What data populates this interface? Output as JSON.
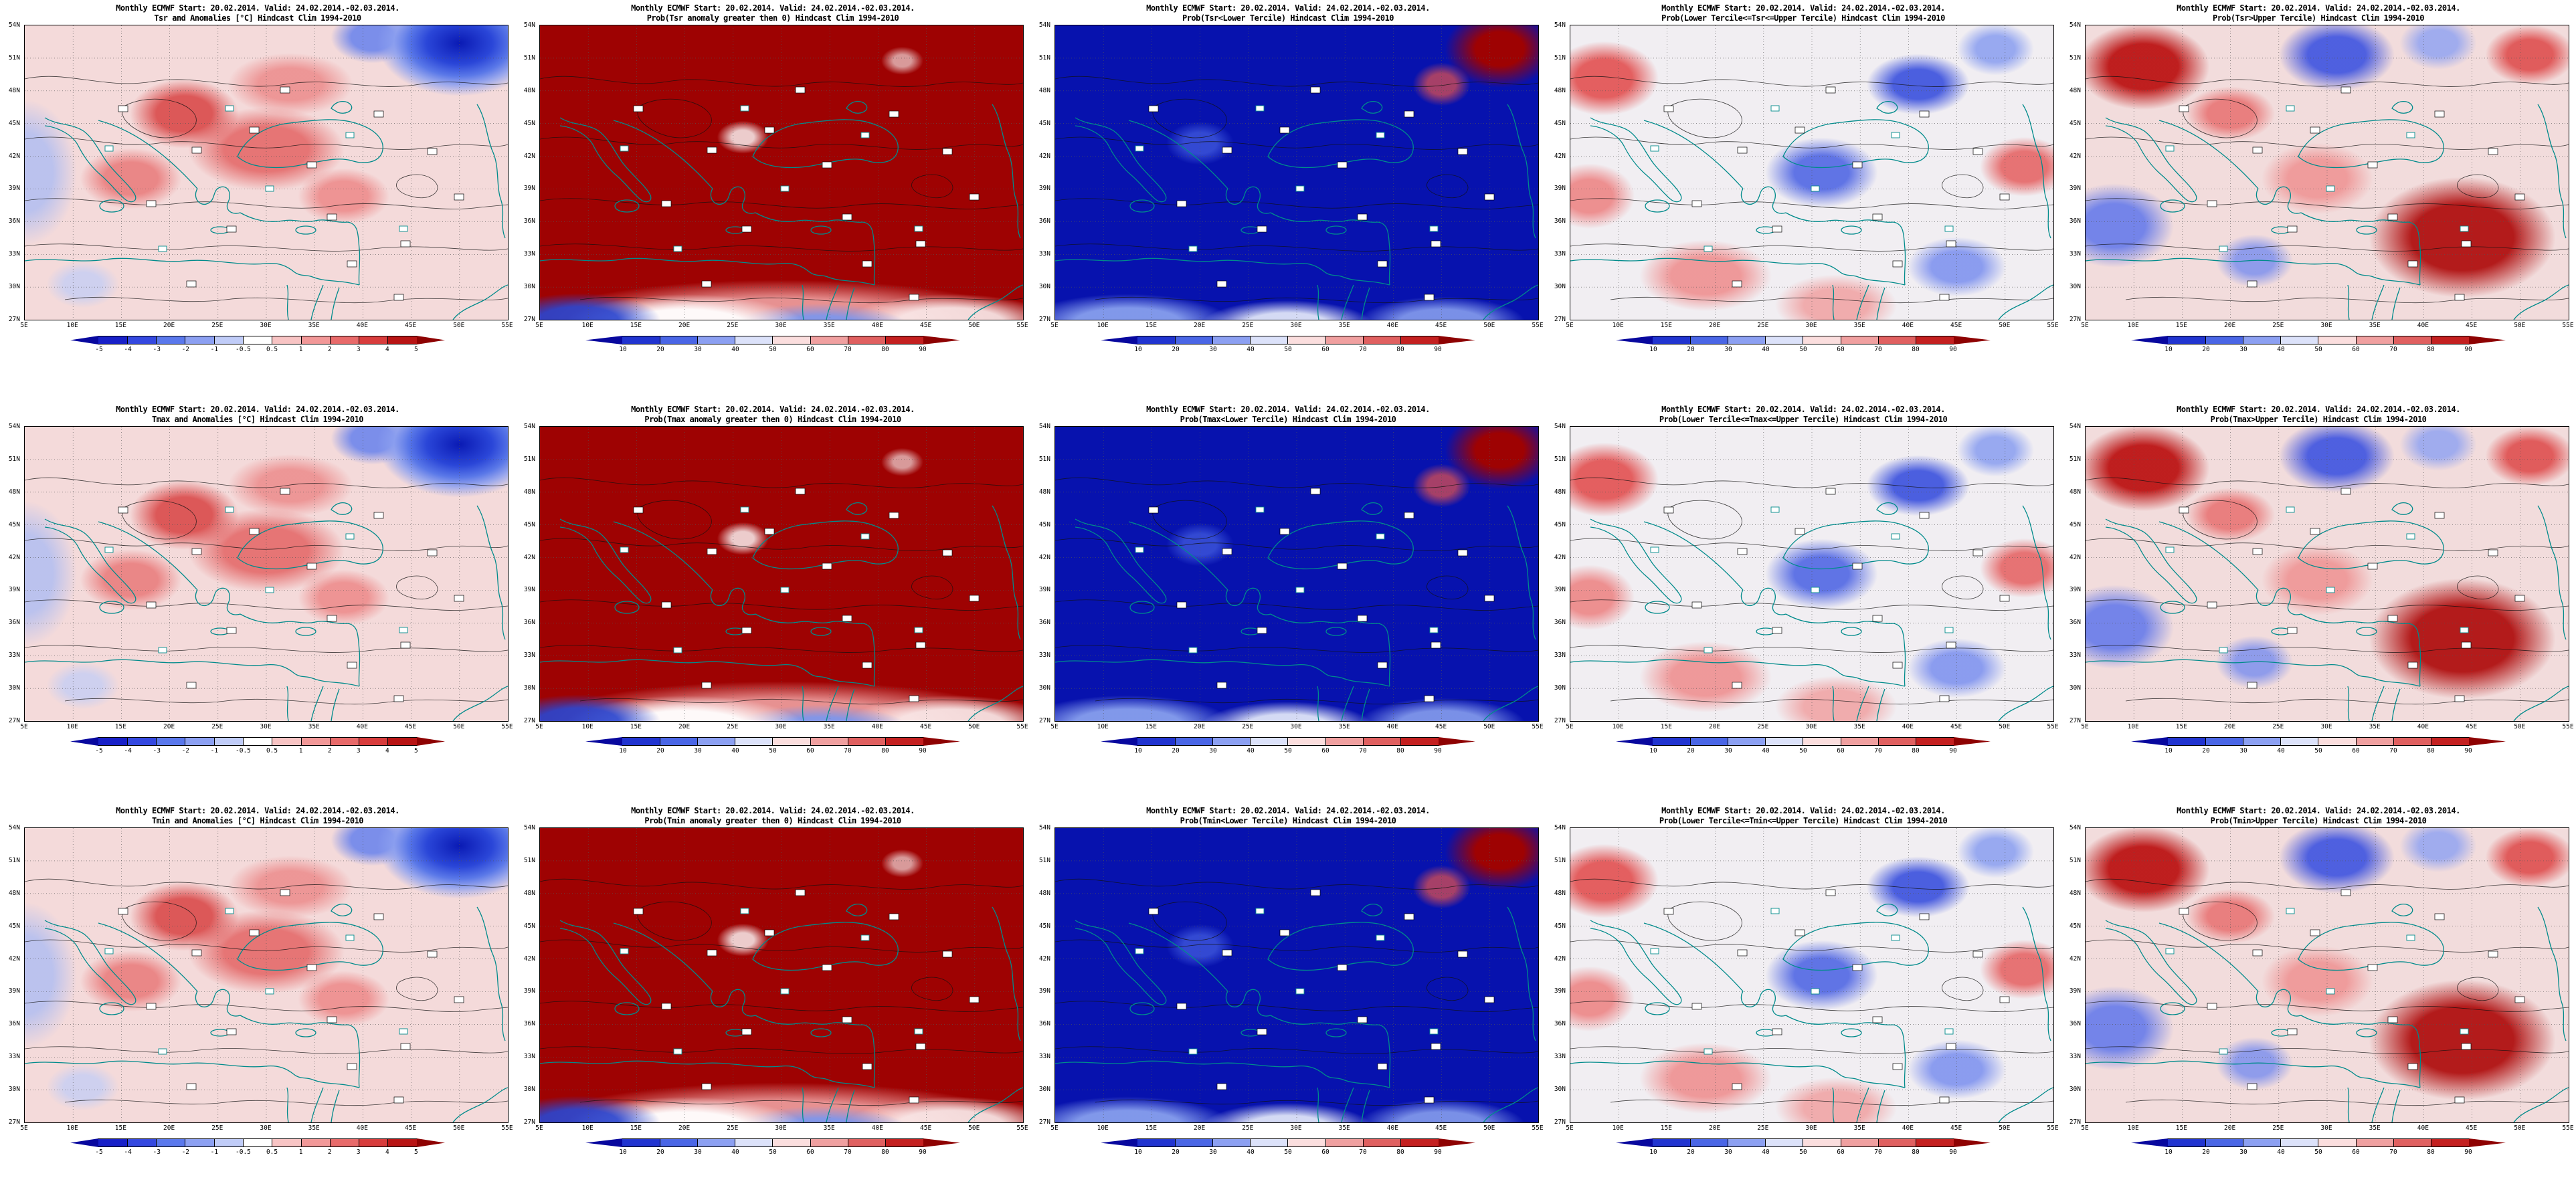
{
  "common": {
    "title1": "Monthly ECMWF Start: 20.02.2014. Valid: 24.02.2014.-02.03.2014."
  },
  "axes": {
    "lat": [
      "54N",
      "51N",
      "48N",
      "45N",
      "42N",
      "39N",
      "36N",
      "33N",
      "30N",
      "27N"
    ],
    "lon": [
      "5E",
      "10E",
      "15E",
      "20E",
      "25E",
      "30E",
      "35E",
      "40E",
      "45E",
      "50E",
      "55E"
    ]
  },
  "colorbars": {
    "anomaly": {
      "labels": [
        "-5",
        "-4",
        "-3",
        "-2",
        "-1",
        "-0.5",
        "0.5",
        "1",
        "2",
        "3",
        "4",
        "5"
      ],
      "colors": [
        "#08089e",
        "#1820c8",
        "#3448e0",
        "#5a78ec",
        "#8ca0f2",
        "#c0ccf8",
        "#ffffff",
        "#f8c4c4",
        "#f29898",
        "#e86a6a",
        "#d83c3c",
        "#b81414",
        "#8e0202"
      ]
    },
    "probability": {
      "labels": [
        "10",
        "20",
        "30",
        "40",
        "50",
        "60",
        "70",
        "80",
        "90"
      ],
      "colors": [
        "#08089e",
        "#2134d0",
        "#4a66e6",
        "#8ca0f2",
        "#dce2fa",
        "#fbdede",
        "#f0a0a0",
        "#e06060",
        "#c42020",
        "#8e0202"
      ]
    }
  },
  "panels": [
    {
      "id": "tsr-anomaly",
      "title2": "Tsr and Anomalies [°C] Hindcast Clim 1994-2010",
      "style": "anom",
      "colorbar": "anomaly"
    },
    {
      "id": "tsr-prob-positive",
      "title2": "Prob(Tsr anomaly greater then 0) Hindcast Clim 1994-2010",
      "style": "prob-pos",
      "colorbar": "probability"
    },
    {
      "id": "tsr-prob-lower",
      "title2": "Prob(Tsr<Lower Tercile) Hindcast Clim 1994-2010",
      "style": "prob-low",
      "colorbar": "probability"
    },
    {
      "id": "tsr-prob-middle",
      "title2": "Prob(Lower Tercile<=Tsr<=Upper Tercile) Hindcast Clim 1994-2010",
      "style": "prob-mid",
      "colorbar": "probability"
    },
    {
      "id": "tsr-prob-upper",
      "title2": "Prob(Tsr>Upper Tercile) Hindcast Clim 1994-2010",
      "style": "prob-high",
      "colorbar": "probability"
    },
    {
      "id": "tmax-anomaly",
      "title2": "Tmax and Anomalies [°C] Hindcast Clim 1994-2010",
      "style": "anom",
      "colorbar": "anomaly"
    },
    {
      "id": "tmax-prob-positive",
      "title2": "Prob(Tmax anomaly greater then 0) Hindcast Clim 1994-2010",
      "style": "prob-pos",
      "colorbar": "probability"
    },
    {
      "id": "tmax-prob-lower",
      "title2": "Prob(Tmax<Lower Tercile) Hindcast Clim 1994-2010",
      "style": "prob-low",
      "colorbar": "probability"
    },
    {
      "id": "tmax-prob-middle",
      "title2": "Prob(Lower Tercile<=Tmax<=Upper Tercile) Hindcast Clim 1994-2010",
      "style": "prob-mid",
      "colorbar": "probability"
    },
    {
      "id": "tmax-prob-upper",
      "title2": "Prob(Tmax>Upper Tercile) Hindcast Clim 1994-2010",
      "style": "prob-high",
      "colorbar": "probability"
    },
    {
      "id": "tmin-anomaly",
      "title2": "Tmin and Anomalies [°C] Hindcast Clim 1994-2010",
      "style": "anom",
      "colorbar": "anomaly"
    },
    {
      "id": "tmin-prob-positive",
      "title2": "Prob(Tmin anomaly greater then 0) Hindcast Clim 1994-2010",
      "style": "prob-pos",
      "colorbar": "probability"
    },
    {
      "id": "tmin-prob-lower",
      "title2": "Prob(Tmin<Lower Tercile) Hindcast Clim 1994-2010",
      "style": "prob-low",
      "colorbar": "probability"
    },
    {
      "id": "tmin-prob-middle",
      "title2": "Prob(Lower Tercile<=Tmin<=Upper Tercile) Hindcast Clim 1994-2010",
      "style": "prob-mid",
      "colorbar": "probability"
    },
    {
      "id": "tmin-prob-upper",
      "title2": "Prob(Tmin>Upper Tercile) Hindcast Clim 1994-2010",
      "style": "prob-high",
      "colorbar": "probability"
    }
  ]
}
